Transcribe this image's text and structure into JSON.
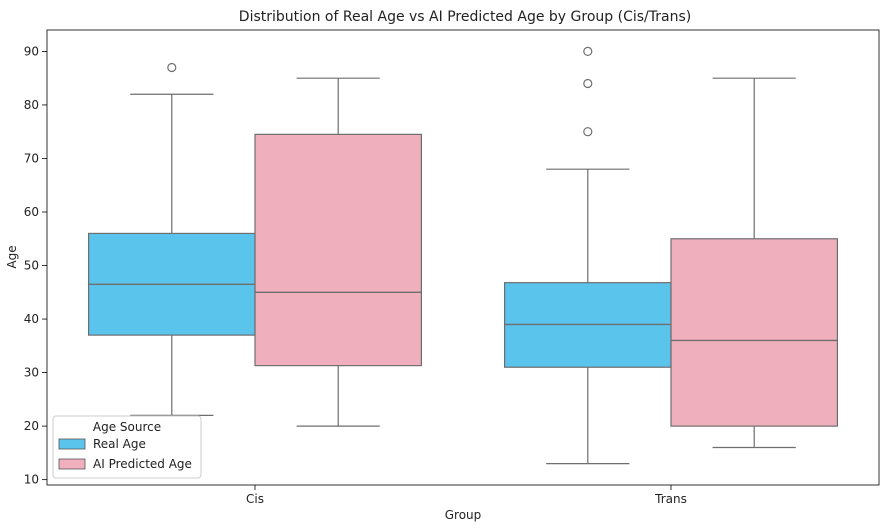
{
  "chart_data": {
    "type": "box",
    "title": "Distribution of Real Age vs AI Predicted Age by Group (Cis/Trans)",
    "xlabel": "Group",
    "ylabel": "Age",
    "categories": [
      "Cis",
      "Trans"
    ],
    "ylim": [
      9,
      94
    ],
    "yticks": [
      10,
      20,
      30,
      40,
      50,
      60,
      70,
      80,
      90
    ],
    "grid": false,
    "legend": {
      "title": "Age Source",
      "placement": "lower-left"
    },
    "series": [
      {
        "name": "Real Age",
        "color": "#5bc4ec",
        "boxes": [
          {
            "category": "Cis",
            "whisker_low": 22,
            "q1": 37,
            "median": 46.5,
            "q3": 56,
            "whisker_high": 82,
            "outliers": [
              87
            ]
          },
          {
            "category": "Trans",
            "whisker_low": 13,
            "q1": 31,
            "median": 39,
            "q3": 46.8,
            "whisker_high": 68,
            "outliers": [
              75,
              84,
              90
            ]
          }
        ]
      },
      {
        "name": "AI Predicted Age",
        "color": "#f0afbc",
        "boxes": [
          {
            "category": "Cis",
            "whisker_low": 20,
            "q1": 31.3,
            "median": 45,
            "q3": 74.5,
            "whisker_high": 85,
            "outliers": []
          },
          {
            "category": "Trans",
            "whisker_low": 16,
            "q1": 20,
            "median": 36,
            "q3": 55,
            "whisker_high": 85,
            "outliers": []
          }
        ]
      }
    ]
  }
}
